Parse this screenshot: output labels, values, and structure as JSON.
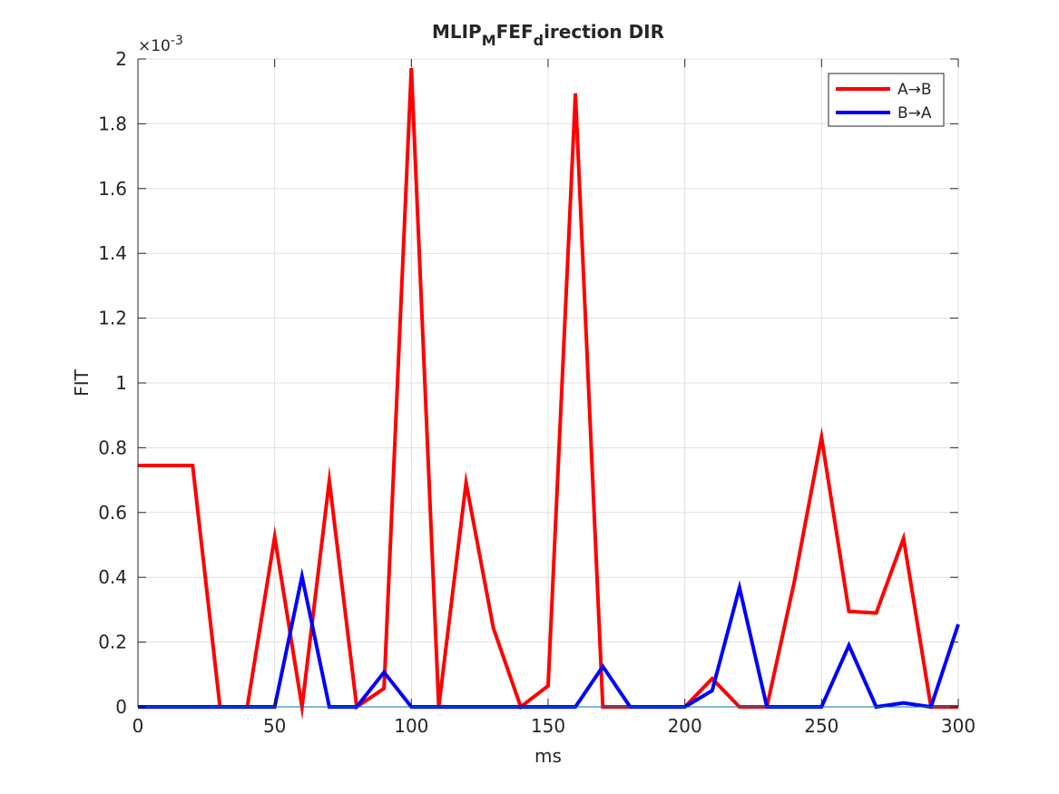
{
  "chart_data": {
    "type": "line",
    "title": {
      "parts": [
        {
          "text": "MLIP",
          "sub": false
        },
        {
          "text": "M",
          "sub": true
        },
        {
          "text": "FEF",
          "sub": false
        },
        {
          "text": "d",
          "sub": true
        },
        {
          "text": "irection DIR",
          "sub": false
        }
      ]
    },
    "xlabel": "ms",
    "ylabel": "FIT",
    "y_exponent_label": "×10",
    "y_exponent": "-3",
    "xlim": [
      0,
      300
    ],
    "ylim": [
      0,
      2
    ],
    "xticks": [
      0,
      50,
      100,
      150,
      200,
      250,
      300
    ],
    "yticks": [
      0,
      0.2,
      0.4,
      0.6,
      0.8,
      1,
      1.2,
      1.4,
      1.6,
      1.8,
      2
    ],
    "ytick_labels": [
      "0",
      "0.2",
      "0.4",
      "0.6",
      "0.8",
      "1",
      "1.2",
      "1.4",
      "1.6",
      "1.8",
      "2"
    ],
    "grid": true,
    "legend_position": "top-right",
    "x": [
      0,
      10,
      20,
      30,
      40,
      50,
      60,
      70,
      80,
      90,
      100,
      110,
      120,
      130,
      140,
      150,
      160,
      170,
      180,
      190,
      200,
      210,
      220,
      230,
      240,
      250,
      260,
      270,
      280,
      290,
      300
    ],
    "series": [
      {
        "name": "A→B",
        "color": "#ff0000",
        "values": [
          0.745,
          0.745,
          0.745,
          0,
          0,
          0.525,
          0,
          0.698,
          0,
          0.057,
          1.972,
          0,
          0.692,
          0.243,
          0,
          0.065,
          1.894,
          0,
          0,
          0,
          0,
          0.087,
          0,
          0,
          0.385,
          0.832,
          0.295,
          0.29,
          0.52,
          0,
          0
        ]
      },
      {
        "name": "B→A",
        "color": "#0000ff",
        "values": [
          0,
          0,
          0,
          0,
          0,
          0,
          0.403,
          0,
          0,
          0.107,
          0,
          0,
          0,
          0,
          0,
          0,
          0,
          0.125,
          0,
          0,
          0,
          0.05,
          0.368,
          0,
          0,
          0,
          0.19,
          0,
          0.012,
          0,
          0.255
        ]
      }
    ]
  }
}
